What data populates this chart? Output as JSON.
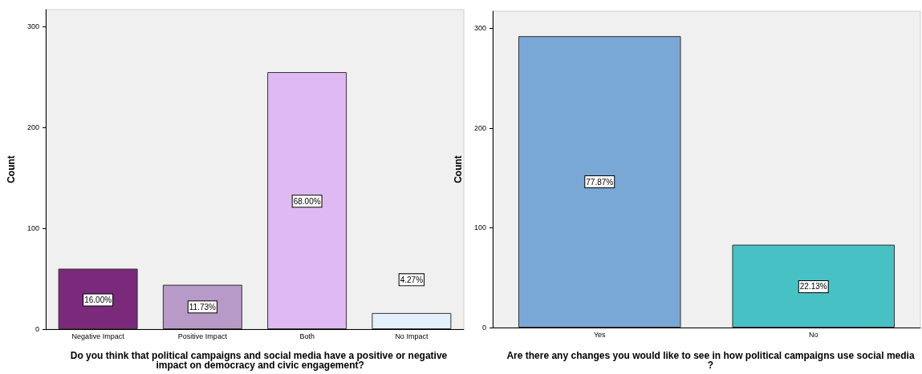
{
  "chart_data": [
    {
      "type": "bar",
      "xlabel": "Do you think that political campaigns and social media have a positive or negative impact on democracy and civic engagement?",
      "ylabel": "Count",
      "categories": [
        "Negative Impact",
        "Positive Impact",
        "Both",
        "No Impact"
      ],
      "values": [
        60,
        44,
        255,
        16
      ],
      "colors": [
        "#7b2a7b",
        "#b89ac8",
        "#dfb9f2",
        "#e2f1fc"
      ],
      "annotations": [
        {
          "text": "16.00%",
          "x": "Negative Impact",
          "y": 29
        },
        {
          "text": "11.73%",
          "x": "Positive Impact",
          "y": 22
        },
        {
          "text": "68.00%",
          "x": "Both",
          "y": 127
        },
        {
          "text": "4.27%",
          "x": "No Impact",
          "y": 49
        }
      ],
      "ylim": [
        0,
        317
      ],
      "yticks": [
        0,
        100,
        200,
        300
      ],
      "grid": false
    },
    {
      "type": "bar",
      "xlabel": "Are there any changes you would like to see in how political campaigns use social media?",
      "ylabel": "Count",
      "categories": [
        "Yes",
        "No"
      ],
      "values": [
        292,
        83
      ],
      "colors": [
        "#7aa8d6",
        "#48c1c5"
      ],
      "annotations": [
        {
          "text": "77.87%",
          "x": "Yes",
          "y": 146
        },
        {
          "text": "22.13%",
          "x": "No",
          "y": 41
        }
      ],
      "ylim": [
        0,
        317
      ],
      "yticks": [
        0,
        100,
        200,
        300
      ],
      "grid": false
    }
  ]
}
